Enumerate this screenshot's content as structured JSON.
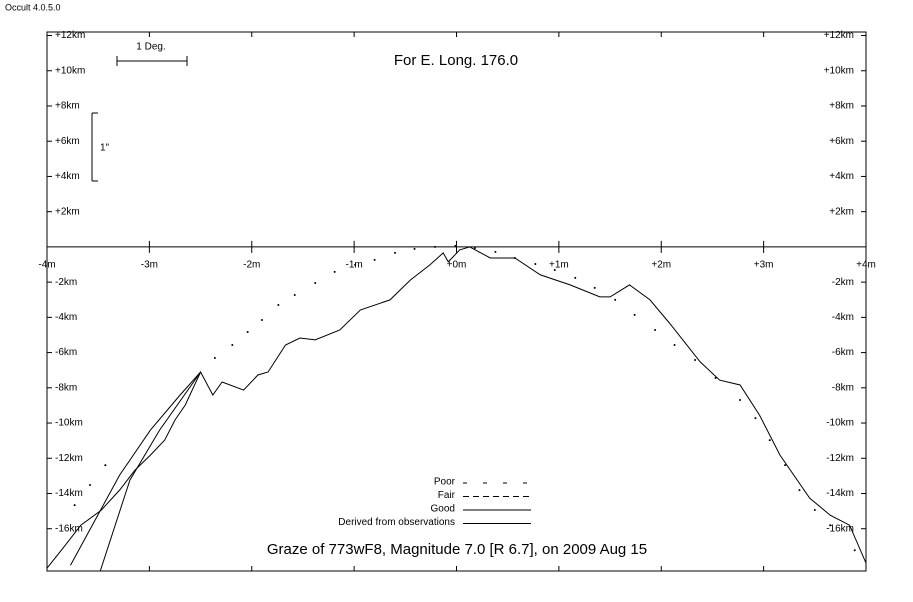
{
  "window": {
    "title": "Occult 4.0.5.0"
  },
  "chart_data": {
    "type": "line",
    "title": "Graze of  773wF8,  Magnitude 7.0 [R 6.7],  on 2009 Aug 15",
    "annotation": "For E. Long. 176.0",
    "scale_labels": [
      "1 Deg.",
      "1\""
    ],
    "xlim": [
      -4,
      4
    ],
    "ylim": [
      -18.4,
      12.2
    ],
    "xticks": [
      {
        "value": -4,
        "label": "-4m"
      },
      {
        "value": -3,
        "label": "-3m"
      },
      {
        "value": -2,
        "label": "-2m"
      },
      {
        "value": -1,
        "label": "-1m"
      },
      {
        "value": 0,
        "label": "+0m"
      },
      {
        "value": 1,
        "label": "+1m"
      },
      {
        "value": 2,
        "label": "+2m"
      },
      {
        "value": 3,
        "label": "+3m"
      },
      {
        "value": 4,
        "label": "+4m"
      }
    ],
    "yticks": [
      {
        "value": 12,
        "label": "+12km"
      },
      {
        "value": 10,
        "label": "+10km"
      },
      {
        "value": 8,
        "label": "+8km"
      },
      {
        "value": 6,
        "label": "+6km"
      },
      {
        "value": 4,
        "label": "+4km"
      },
      {
        "value": 2,
        "label": "+2km"
      },
      {
        "value": -2,
        "label": "-2km"
      },
      {
        "value": -4,
        "label": "-4km"
      },
      {
        "value": -6,
        "label": "-6km"
      },
      {
        "value": -8,
        "label": "-8km"
      },
      {
        "value": -10,
        "label": "-10km"
      },
      {
        "value": -12,
        "label": "-12km"
      },
      {
        "value": -14,
        "label": "-14km"
      },
      {
        "value": -16,
        "label": "-16km"
      }
    ],
    "legend": [
      {
        "label": "Poor",
        "dash": "4 16"
      },
      {
        "label": "Fair",
        "dash": "6 4"
      },
      {
        "label": "Good",
        "dash": "none"
      },
      {
        "label": "Derived from observations",
        "dash": "none"
      }
    ],
    "series": [
      {
        "style": "solid",
        "color": "#000000",
        "x": [
          -4.0,
          -3.82,
          -3.67,
          -3.47,
          -3.29,
          -3.14,
          -2.99,
          -2.85,
          -2.75,
          -2.65,
          -2.5,
          -2.38,
          -2.29,
          -2.08,
          -1.94,
          -1.84,
          -1.67,
          -1.53,
          -1.38,
          -1.14,
          -0.94,
          -0.65,
          -0.45,
          -0.26,
          -0.13,
          -0.08,
          0.03,
          0.13,
          0.33,
          0.57,
          0.82,
          1.11,
          1.4,
          1.5,
          1.69,
          1.89,
          2.08,
          2.38,
          2.57,
          2.77,
          2.96,
          3.16,
          3.45,
          3.65,
          3.84,
          4.0
        ],
        "values": [
          -18.24,
          -16.93,
          -15.8,
          -14.94,
          -13.8,
          -12.67,
          -11.82,
          -10.97,
          -9.83,
          -8.98,
          -7.1,
          -8.41,
          -7.67,
          -8.13,
          -7.27,
          -7.1,
          -5.57,
          -5.17,
          -5.28,
          -4.72,
          -3.58,
          -3.01,
          -1.88,
          -1.02,
          -0.34,
          -0.85,
          -0.17,
          0.0,
          -0.63,
          -0.63,
          -1.59,
          -2.16,
          -2.84,
          -2.84,
          -2.16,
          -3.01,
          -4.32,
          -6.53,
          -7.56,
          -7.84,
          -9.55,
          -11.82,
          -14.26,
          -15.23,
          -15.8,
          -17.95
        ]
      },
      {
        "style": "solid",
        "color": "#000000",
        "x": [
          -3.48,
          -3.19,
          -2.9,
          -2.5
        ],
        "values": [
          -18.41,
          -13.24,
          -10.4,
          -7.1
        ]
      },
      {
        "style": "solid",
        "color": "#000000",
        "x": [
          -3.77,
          -3.53,
          -3.29,
          -2.99,
          -2.7,
          -2.5
        ],
        "values": [
          -18.07,
          -15.51,
          -12.95,
          -10.4,
          -8.41,
          -7.1
        ]
      },
      {
        "style": "dotted",
        "color": "#000000",
        "x": [
          -3.73,
          -3.58,
          -3.43,
          -2.36,
          -2.19,
          -2.04,
          -1.9,
          -1.74,
          -1.58,
          -1.38,
          -1.19,
          -0.99,
          -0.8,
          -0.6,
          -0.41,
          -0.21,
          -0.01,
          0.18,
          0.38,
          0.57,
          0.77,
          0.96,
          1.16,
          1.35,
          1.55,
          1.74,
          1.94,
          2.13,
          2.33,
          2.53,
          2.77,
          2.92,
          3.06,
          3.21,
          3.35,
          3.5,
          3.65,
          3.89
        ],
        "values": [
          -14.66,
          -13.52,
          -12.39,
          -6.31,
          -5.57,
          -4.83,
          -4.15,
          -3.3,
          -2.73,
          -2.05,
          -1.42,
          -1.02,
          -0.74,
          -0.34,
          -0.11,
          0.0,
          0.06,
          -0.06,
          -0.28,
          -0.63,
          -0.97,
          -1.31,
          -1.76,
          -2.33,
          -3.01,
          -3.86,
          -4.72,
          -5.57,
          -6.42,
          -7.44,
          -8.69,
          -9.72,
          -10.97,
          -12.39,
          -13.81,
          -14.94,
          -15.8,
          -17.22
        ]
      }
    ]
  }
}
